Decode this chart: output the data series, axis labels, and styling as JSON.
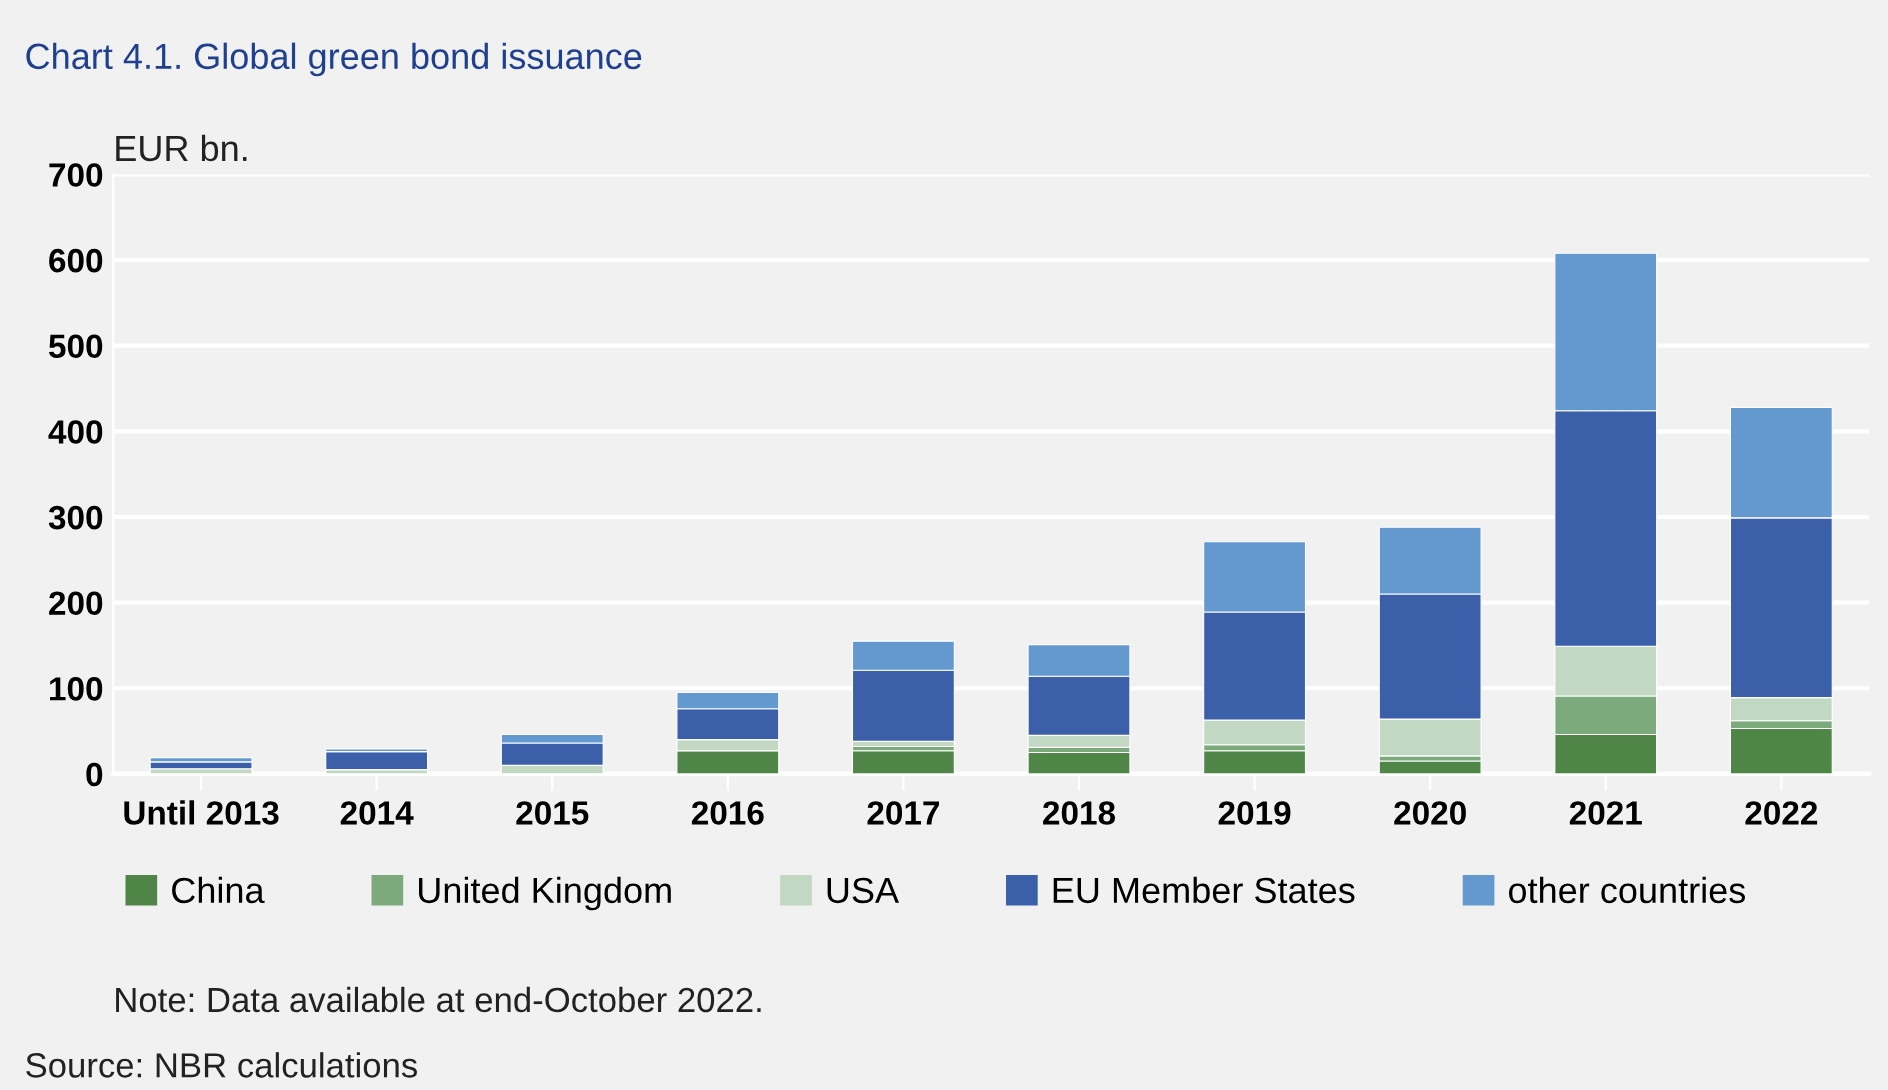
{
  "chart_data": {
    "type": "bar",
    "title": "Chart 4.1. Global green bond issuance",
    "ylabel": "EUR bn.",
    "categories": [
      "Until 2013",
      "2014",
      "2015",
      "2016",
      "2017",
      "2018",
      "2019",
      "2020",
      "2021",
      "2022"
    ],
    "stacked": true,
    "series": [
      {
        "name": "China",
        "color": "#4f8647",
        "values": [
          0,
          0,
          0,
          27,
          27,
          25,
          27,
          15,
          46,
          53
        ]
      },
      {
        "name": "United Kingdom",
        "color": "#7daa7c",
        "values": [
          0,
          0,
          0,
          null,
          5,
          6,
          7,
          6,
          45,
          9
        ]
      },
      {
        "name": "USA",
        "color": "#c2d8c3",
        "values": [
          6,
          5,
          10,
          13,
          6,
          14,
          29,
          43,
          58,
          27
        ]
      },
      {
        "name": "EU Member States",
        "color": "#3b60a9",
        "values": [
          8,
          21,
          26,
          36,
          83,
          69,
          126,
          146,
          275,
          210
        ]
      },
      {
        "name": "other countries",
        "color": "#6399cf",
        "values": [
          5,
          3,
          10,
          19,
          34,
          37,
          82,
          78,
          184,
          129
        ]
      }
    ],
    "ylim": [
      0,
      700
    ],
    "yticks": [
      0,
      100,
      200,
      300,
      400,
      500,
      600,
      700
    ],
    "grid": "y",
    "legend": "bottom",
    "annotations": [
      "Note: Data available at end-October 2022.",
      "Source: NBR calculations"
    ]
  }
}
